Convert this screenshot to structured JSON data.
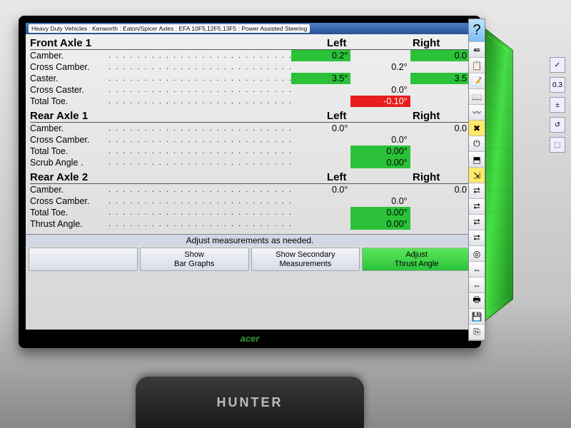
{
  "breadcrumb": "Heavy Duty Vehicles : Kenworth : Eaton/Spicer Axles : EFA 10F5,12F5,13F5 : Power Assisted Steering",
  "sections": [
    {
      "title": "Front Axle 1",
      "left_label": "Left",
      "right_label": "Right",
      "rows": [
        {
          "label": "Camber.",
          "left": {
            "text": "0.2°",
            "bg": "green"
          },
          "right": {
            "text": "0.0",
            "bg": "green"
          }
        },
        {
          "label": "Cross Camber.",
          "center": {
            "text": "0.2°",
            "bg": "none"
          }
        },
        {
          "label": "Caster.",
          "left": {
            "text": "3.5°",
            "bg": "green"
          },
          "right": {
            "text": "3.5",
            "bg": "green"
          }
        },
        {
          "label": "Cross Caster.",
          "center": {
            "text": "0.0°",
            "bg": "none"
          }
        },
        {
          "label": "Total Toe.",
          "center": {
            "text": "-0.10°",
            "bg": "red"
          }
        }
      ]
    },
    {
      "title": "Rear Axle 1",
      "left_label": "Left",
      "right_label": "Right",
      "rows": [
        {
          "label": "Camber.",
          "left": {
            "text": "0.0°",
            "bg": "none"
          },
          "right": {
            "text": "0.0",
            "bg": "none"
          }
        },
        {
          "label": "Cross Camber.",
          "center": {
            "text": "0.0°",
            "bg": "none"
          }
        },
        {
          "label": "Total Toe.",
          "center": {
            "text": "0.00°",
            "bg": "green"
          }
        },
        {
          "label": "Scrub Angle .",
          "center": {
            "text": "0.00°",
            "bg": "green"
          }
        }
      ]
    },
    {
      "title": "Rear Axle 2",
      "left_label": "Left",
      "right_label": "Right",
      "rows": [
        {
          "label": "Camber.",
          "left": {
            "text": "0.0°",
            "bg": "none"
          },
          "right": {
            "text": "0.0",
            "bg": "none"
          }
        },
        {
          "label": "Cross Camber.",
          "center": {
            "text": "0.0°",
            "bg": "none"
          }
        },
        {
          "label": "Total Toe.",
          "center": {
            "text": "0.00°",
            "bg": "green"
          }
        },
        {
          "label": "Thrust Angle.",
          "center": {
            "text": "0.00°",
            "bg": "green"
          }
        }
      ]
    }
  ],
  "hint": "Adjust measurements as needed.",
  "buttons": {
    "blank": "",
    "show_bar": "Show\nBar Graphs",
    "show_secondary": "Show Secondary\nMeasurements",
    "adjust": "Adjust\nThrust Angle"
  },
  "monitor_brand": "acer",
  "stand_brand": "HUNTER",
  "toolbar": [
    {
      "glyph": "?",
      "name": "help-icon",
      "big": true
    },
    {
      "glyph": "⇚",
      "name": "back-icon"
    },
    {
      "glyph": "📋",
      "name": "clipboard-icon"
    },
    {
      "glyph": "📝",
      "name": "note-icon"
    },
    {
      "glyph": "📖",
      "name": "book-icon"
    },
    {
      "glyph": "〰",
      "name": "wave-icon"
    },
    {
      "glyph": "✖",
      "name": "close-icon",
      "sel": true
    },
    {
      "glyph": "⏻",
      "name": "power-icon"
    },
    {
      "glyph": "⬒",
      "name": "window-icon"
    },
    {
      "glyph": "⇲",
      "name": "angle-icon",
      "sel": true
    },
    {
      "glyph": "⮂",
      "name": "axle1-icon"
    },
    {
      "glyph": "⮂",
      "name": "axle2-icon"
    },
    {
      "glyph": "⮂",
      "name": "axle3-icon"
    },
    {
      "glyph": "⮂",
      "name": "axle4-icon"
    },
    {
      "glyph": "◎",
      "name": "target-icon"
    },
    {
      "glyph": "⇔",
      "name": "align-icon"
    },
    {
      "glyph": "⇔",
      "name": "align2-icon"
    },
    {
      "glyph": "🖶",
      "name": "print-icon"
    },
    {
      "glyph": "💾",
      "name": "save-icon"
    },
    {
      "glyph": "⎘",
      "name": "export-icon"
    }
  ],
  "mini_icons": [
    {
      "glyph": "✓",
      "name": "check-icon"
    },
    {
      "glyph": "0.3",
      "name": "value-readout"
    },
    {
      "glyph": "±",
      "name": "tolerance-icon"
    },
    {
      "glyph": "↺",
      "name": "reset-icon"
    },
    {
      "glyph": "⬚",
      "name": "frame-icon"
    }
  ],
  "colors": {
    "green": "#2bc23a",
    "red": "#e81d1d",
    "screen_top": "#f0f0f0",
    "screen_bottom": "#d6d6d6",
    "titlebar": "#2a4f94"
  }
}
